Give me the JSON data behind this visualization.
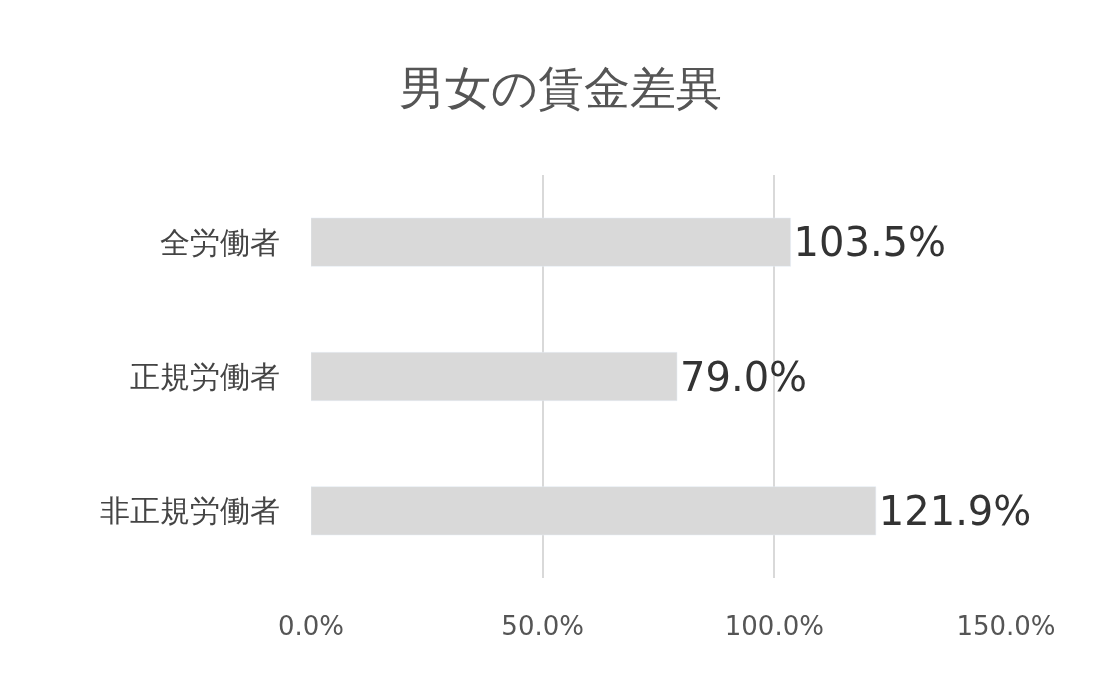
{
  "chart_data": {
    "type": "bar",
    "orientation": "horizontal",
    "title": "男女の賃金差異",
    "categories": [
      "全労働者",
      "正規労働者",
      "非正規労働者"
    ],
    "values": [
      103.5,
      79.0,
      121.9
    ],
    "value_labels": [
      "103.5%",
      "79.0%",
      "121.9%"
    ],
    "color": "#d9d9d9",
    "xlim": [
      0,
      150
    ],
    "xticks": [
      {
        "value": 0,
        "label": "0.0%"
      },
      {
        "value": 50,
        "label": "50.0%"
      },
      {
        "value": 100,
        "label": "100.0%"
      },
      {
        "value": 150,
        "label": "150.0%"
      }
    ],
    "grid": "x",
    "legend": false
  }
}
